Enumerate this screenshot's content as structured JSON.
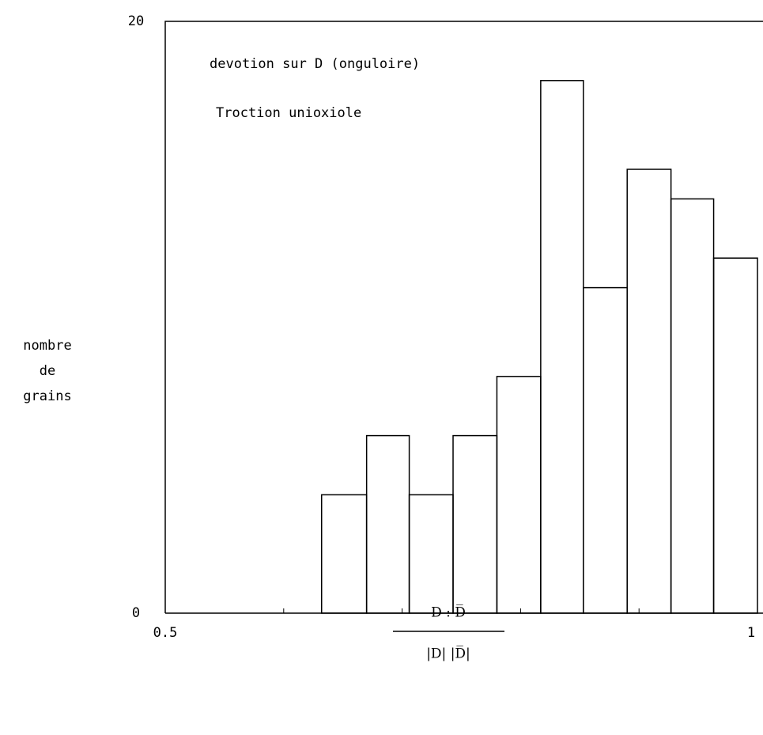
{
  "chart_data": {
    "type": "histogram",
    "annotations": [
      "devotion sur D (onguloire)",
      "Troction unioxiole"
    ],
    "ylabel": [
      "nombre",
      "de",
      "grains"
    ],
    "xlabel_numerator": "D  :  D̅",
    "xlabel_denominator": "|D| |D̅|",
    "bins": [
      0.632,
      0.67,
      0.706,
      0.743,
      0.78,
      0.817,
      0.853,
      0.89,
      0.927,
      0.963,
      1.0
    ],
    "values": [
      4,
      6,
      4,
      6,
      8,
      18,
      11,
      15,
      14,
      12
    ],
    "color": "#000000",
    "xlim": [
      0.5,
      1.0
    ],
    "ylim": [
      0,
      20
    ],
    "xticks": [
      0.5,
      1
    ],
    "xminorticks": [
      0.6,
      0.7,
      0.8,
      0.9
    ],
    "yticks": [
      0,
      20
    ]
  }
}
